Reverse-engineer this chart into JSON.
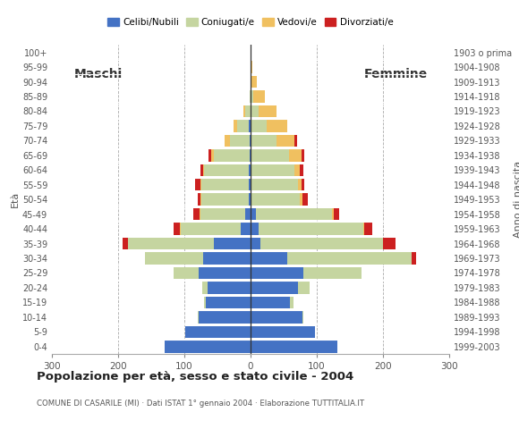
{
  "age_groups": [
    "0-4",
    "5-9",
    "10-14",
    "15-19",
    "20-24",
    "25-29",
    "30-34",
    "35-39",
    "40-44",
    "45-49",
    "50-54",
    "55-59",
    "60-64",
    "65-69",
    "70-74",
    "75-79",
    "80-84",
    "85-89",
    "90-94",
    "95-99",
    "100+"
  ],
  "birth_years": [
    "1999-2003",
    "1994-1998",
    "1989-1993",
    "1984-1988",
    "1979-1983",
    "1974-1978",
    "1969-1973",
    "1964-1968",
    "1959-1963",
    "1954-1958",
    "1949-1953",
    "1944-1948",
    "1939-1943",
    "1934-1938",
    "1929-1933",
    "1924-1928",
    "1919-1923",
    "1914-1918",
    "1909-1913",
    "1904-1908",
    "1903 o prima"
  ],
  "males": {
    "celibe": [
      130,
      98,
      78,
      68,
      65,
      78,
      72,
      55,
      15,
      8,
      2,
      2,
      2,
      1,
      1,
      2,
      0,
      0,
      0,
      0,
      0
    ],
    "coniugato": [
      0,
      0,
      1,
      2,
      8,
      38,
      88,
      130,
      90,
      68,
      72,
      72,
      68,
      54,
      30,
      18,
      8,
      1,
      0,
      0,
      0
    ],
    "vedovo": [
      0,
      0,
      0,
      0,
      0,
      0,
      0,
      0,
      1,
      1,
      1,
      2,
      2,
      4,
      8,
      5,
      2,
      0,
      0,
      0,
      0
    ],
    "divorziato": [
      0,
      0,
      0,
      0,
      0,
      0,
      0,
      8,
      10,
      10,
      5,
      8,
      4,
      4,
      0,
      0,
      0,
      0,
      0,
      0,
      0
    ]
  },
  "females": {
    "nubile": [
      132,
      98,
      78,
      60,
      72,
      80,
      55,
      15,
      12,
      8,
      2,
      2,
      2,
      1,
      1,
      2,
      0,
      0,
      0,
      0,
      0
    ],
    "coniugata": [
      0,
      0,
      2,
      5,
      18,
      88,
      188,
      185,
      158,
      115,
      72,
      70,
      65,
      58,
      38,
      22,
      12,
      4,
      1,
      0,
      0
    ],
    "vedova": [
      0,
      0,
      0,
      0,
      0,
      0,
      0,
      1,
      2,
      3,
      5,
      5,
      8,
      18,
      28,
      32,
      28,
      18,
      8,
      3,
      0
    ],
    "divorziata": [
      0,
      0,
      0,
      0,
      0,
      0,
      8,
      18,
      12,
      8,
      8,
      5,
      5,
      5,
      4,
      0,
      0,
      0,
      0,
      0,
      0
    ]
  },
  "colors": {
    "celibe_nubile": "#4472c4",
    "coniugato_a": "#c5d5a0",
    "vedovo_a": "#f0c060",
    "divorziato_a": "#cc2020"
  },
  "title": "Popolazione per età, sesso e stato civile - 2004",
  "subtitle": "COMUNE DI CASARILE (MI) · Dati ISTAT 1° gennaio 2004 · Elaborazione TUTTITALIA.IT",
  "xlabel_left": "Maschi",
  "xlabel_right": "Femmine",
  "ylabel_left": "Età",
  "ylabel_right": "Anno di nascita",
  "xlim": 300,
  "legend_labels": [
    "Celibi/Nubili",
    "Coniugati/e",
    "Vedovi/e",
    "Divorziati/e"
  ],
  "background_color": "#ffffff"
}
